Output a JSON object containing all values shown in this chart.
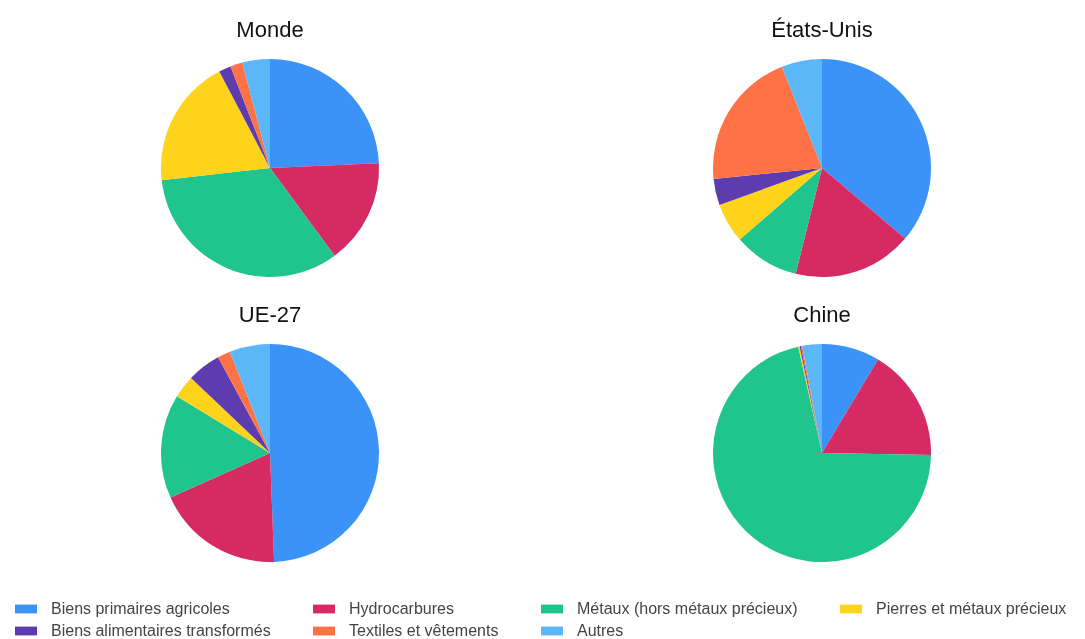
{
  "chart_data": [
    {
      "type": "pie",
      "title": "Monde",
      "categories": [
        "Biens primaires agricoles",
        "Hydrocarbures",
        "Métaux (hors métaux précieux)",
        "Pierres et métaux précieux",
        "Biens alimentaires transformés",
        "Textiles et vêtements",
        "Autres"
      ],
      "values": [
        24.3,
        15.6,
        33.3,
        19.1,
        1.8,
        1.8,
        4.1
      ],
      "colors": [
        "#3b93f7",
        "#d62a63",
        "#1fc58c",
        "#fdd31c",
        "#5c3cae",
        "#ff7246",
        "#5bb7f8"
      ],
      "legend": "bottom"
    },
    {
      "type": "pie",
      "title": "États-Unis",
      "categories": [
        null,
        null,
        null,
        null,
        null,
        null,
        null
      ],
      "values": [
        36.2,
        17.7,
        9.7,
        5.9,
        3.9,
        20.6,
        6.0
      ],
      "colors": [
        "#3b93f7",
        "#d62a63",
        "#1fc58c",
        "#fdd31c",
        "#5c3cae",
        "#ff7246",
        "#5bb7f8"
      ]
    },
    {
      "type": "pie",
      "title": "UE-27",
      "categories": [
        null,
        null,
        null,
        null,
        null,
        null,
        null
      ],
      "values": [
        49.4,
        18.9,
        15.4,
        3.4,
        5.0,
        1.9,
        6.0
      ],
      "colors": [
        "#3b93f7",
        "#d62a63",
        "#1fc58c",
        "#fdd31c",
        "#5c3cae",
        "#ff7246",
        "#5bb7f8"
      ]
    },
    {
      "type": "pie",
      "title": "Chine",
      "categories": [
        null,
        null,
        null,
        null,
        null,
        null,
        null
      ],
      "values": [
        8.6,
        16.7,
        71.2,
        0.2,
        0.2,
        0.2,
        2.9
      ],
      "colors": [
        "#3b93f7",
        "#d62a63",
        "#1fc58c",
        "#fdd31c",
        "#5c3cae",
        "#ff7246",
        "#5bb7f8"
      ]
    }
  ]
}
